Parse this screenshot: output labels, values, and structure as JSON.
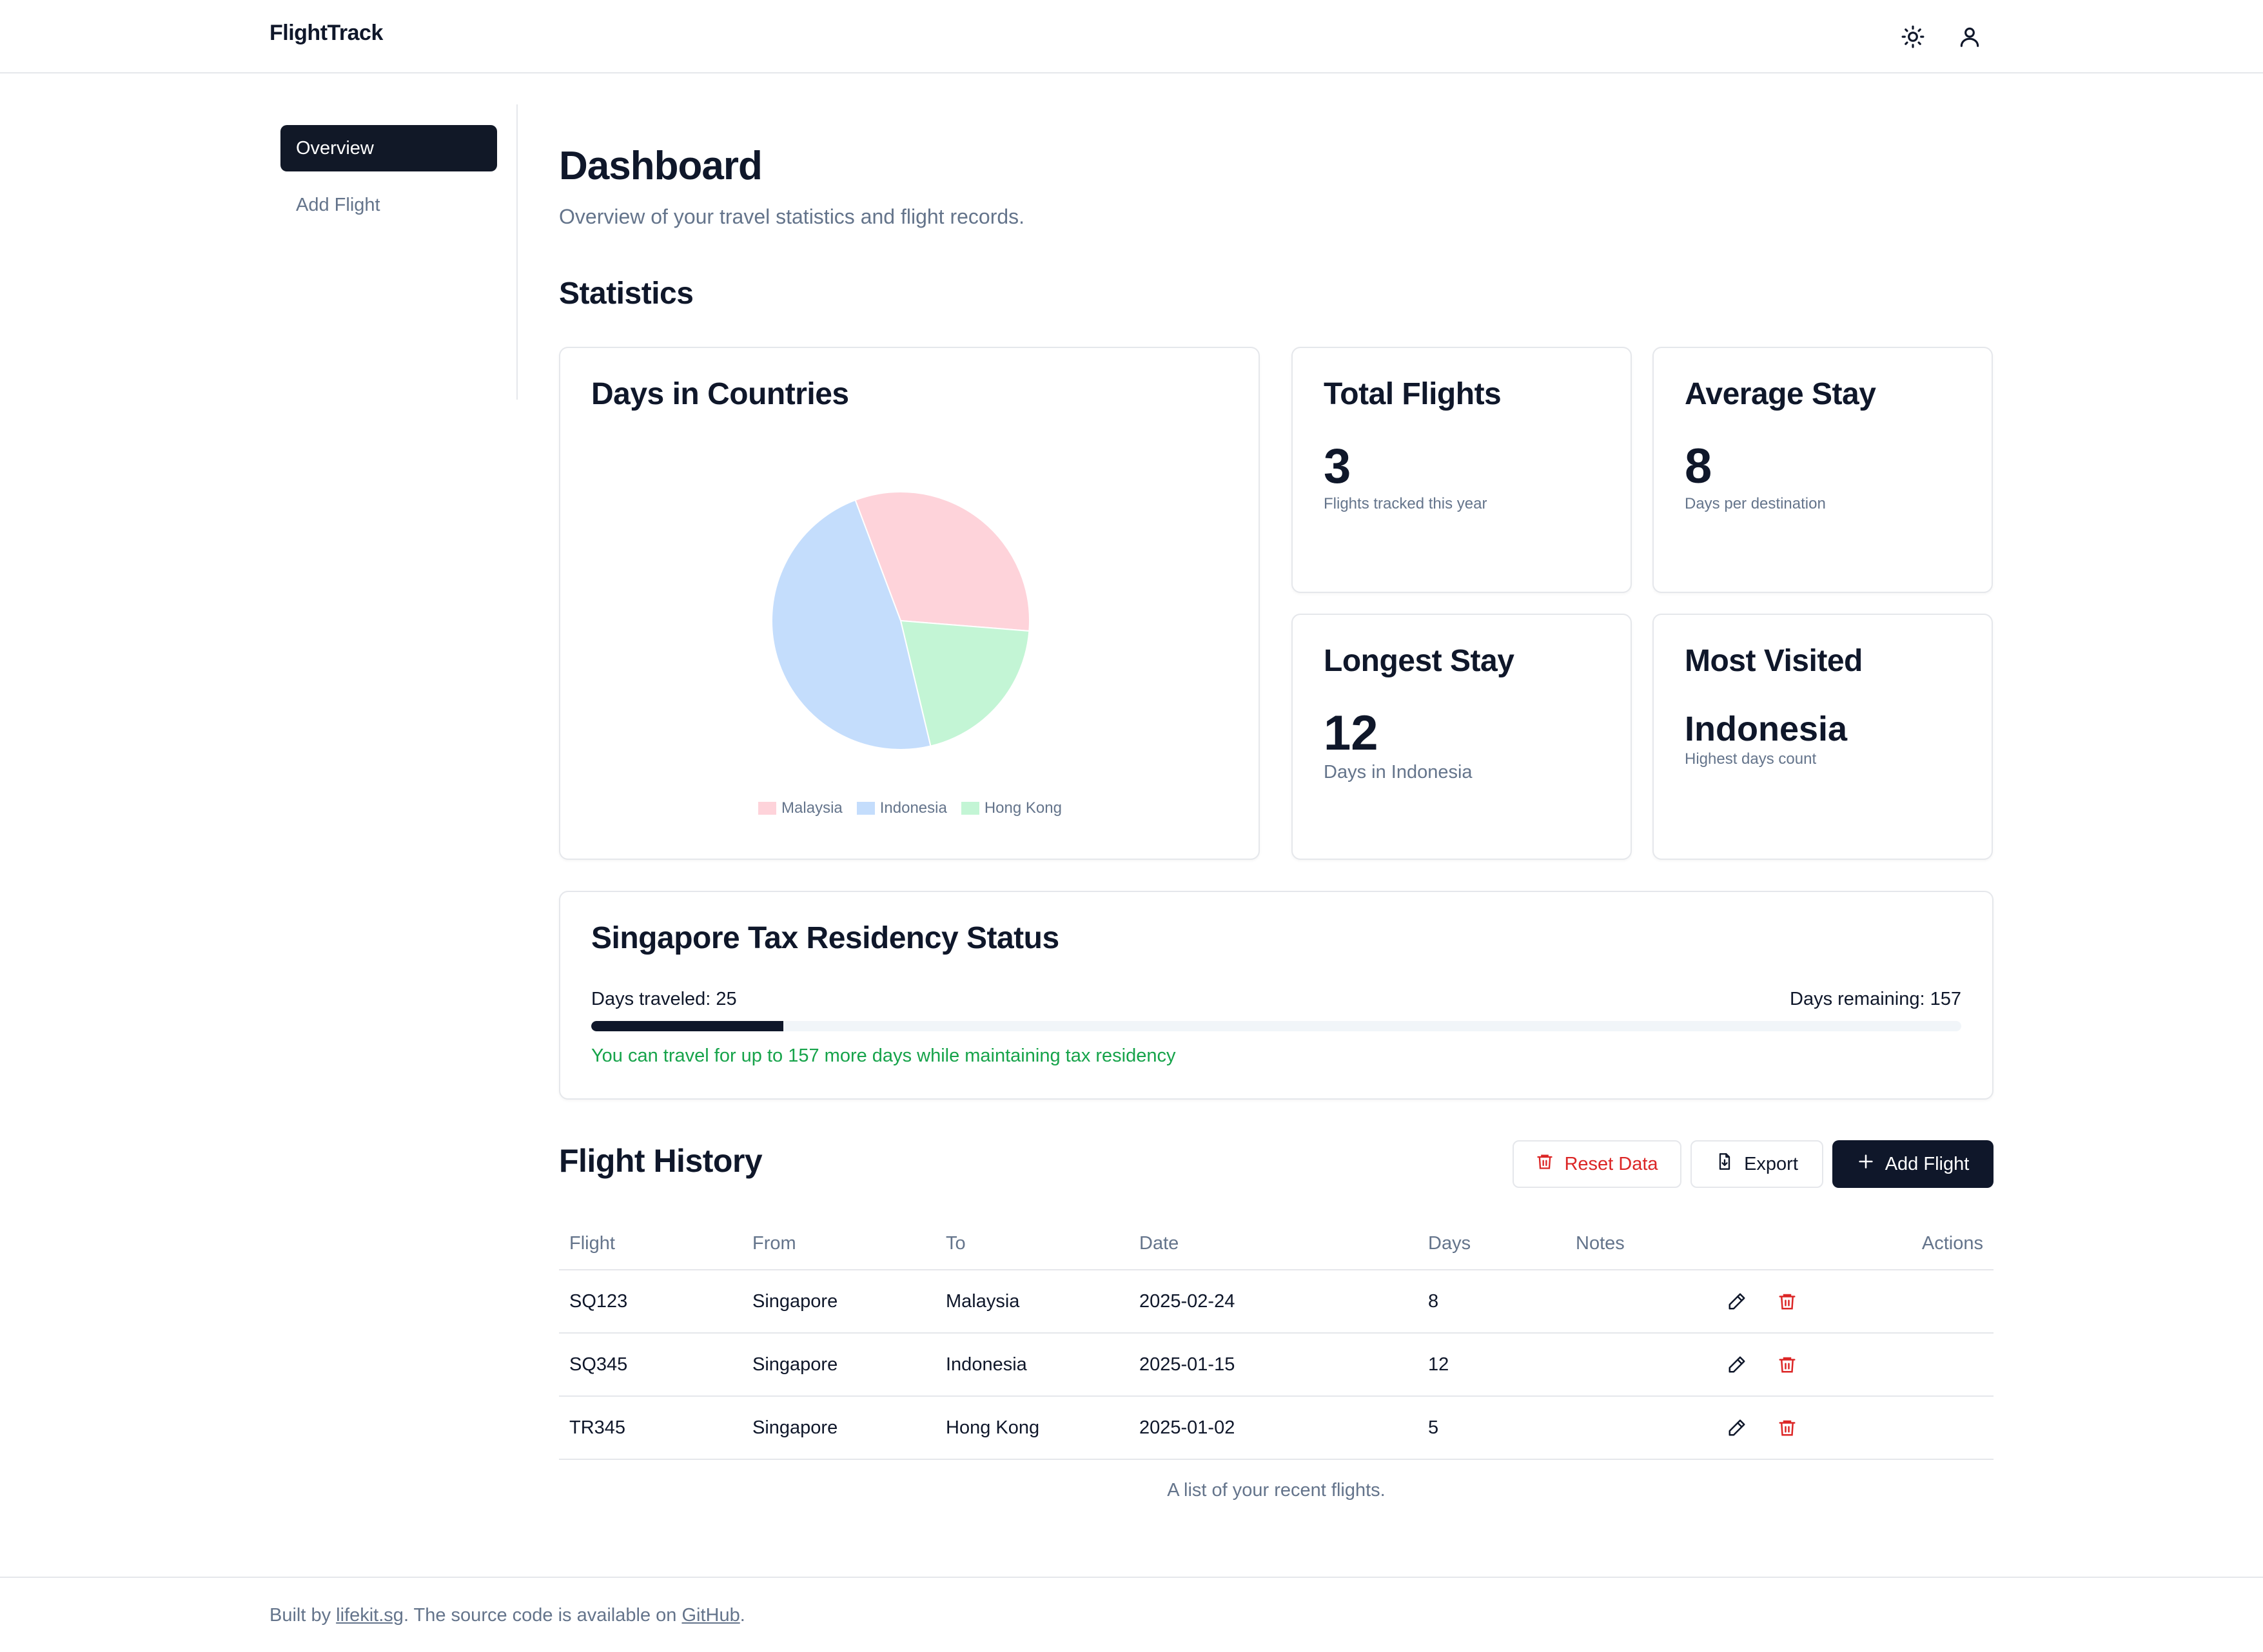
{
  "app": {
    "brand": "FlightTrack"
  },
  "header": {
    "theme_icon": "sun-icon",
    "user_icon": "user-icon"
  },
  "sidebar": {
    "items": [
      {
        "label": "Overview",
        "active": true
      },
      {
        "label": "Add Flight",
        "active": false
      }
    ]
  },
  "page": {
    "title": "Dashboard",
    "subtitle": "Overview of your travel statistics and flight records.",
    "stats_heading": "Statistics"
  },
  "countries_card": {
    "title": "Days in Countries",
    "chart_data": {
      "type": "pie",
      "categories": [
        "Malaysia",
        "Indonesia",
        "Hong Kong"
      ],
      "values": [
        8,
        12,
        5
      ],
      "colors": [
        "#fed3da",
        "#c4ddfc",
        "#c3f5d5"
      ],
      "legend": "bottom"
    }
  },
  "stats": {
    "total_flights": {
      "title": "Total Flights",
      "value": "3",
      "note": "Flights tracked this year"
    },
    "average_stay": {
      "title": "Average Stay",
      "value": "8",
      "note": "Days per destination"
    },
    "longest_stay": {
      "title": "Longest Stay",
      "value": "12",
      "note": "Days in Indonesia"
    },
    "most_visited": {
      "title": "Most Visited",
      "value": "Indonesia",
      "note": "Highest days count"
    }
  },
  "tax": {
    "title": "Singapore Tax Residency Status",
    "traveled_label": "Days traveled: 25",
    "remaining_label": "Days remaining: 157",
    "progress_fraction": 0.14,
    "message": "You can travel for up to 157 more days while maintaining tax residency",
    "colors": {
      "fill": "#0f172a",
      "track": "#f1f5f9",
      "message": "#16a34a"
    }
  },
  "history": {
    "title": "Flight History",
    "buttons": {
      "reset": "Reset Data",
      "export": "Export",
      "add": "Add Flight"
    },
    "columns": [
      "Flight",
      "From",
      "To",
      "Date",
      "Days",
      "Notes",
      "Actions"
    ],
    "rows": [
      {
        "flight": "SQ123",
        "from": "Singapore",
        "to": "Malaysia",
        "date": "2025-02-24",
        "days": "8",
        "notes": ""
      },
      {
        "flight": "SQ345",
        "from": "Singapore",
        "to": "Indonesia",
        "date": "2025-01-15",
        "days": "12",
        "notes": ""
      },
      {
        "flight": "TR345",
        "from": "Singapore",
        "to": "Hong Kong",
        "date": "2025-01-02",
        "days": "5",
        "notes": ""
      }
    ],
    "caption": "A list of your recent flights."
  },
  "footer": {
    "prefix": "Built by ",
    "link1": "lifekit.sg",
    "middle": ". The source code is available on ",
    "link2": "GitHub",
    "suffix": "."
  }
}
